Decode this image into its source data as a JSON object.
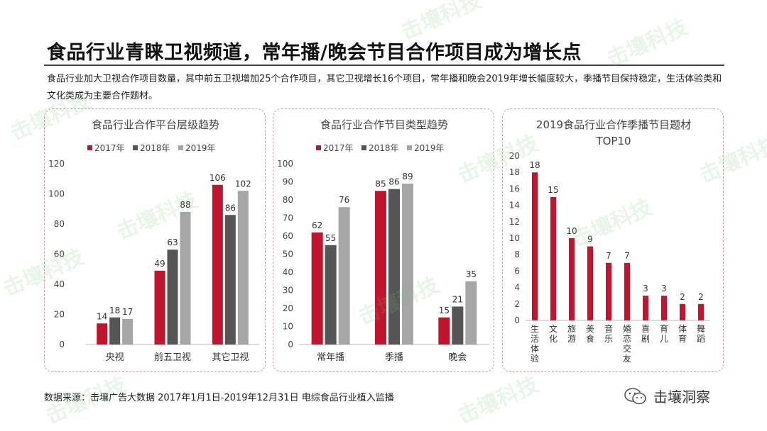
{
  "header": {
    "title": "食品行业青睐卫视频道，常年播/晚会节目合作项目成为增长点",
    "description": "食品行业加大卫视合作项目数量，其中前五卫视增加25个合作项目，其它卫视增长16个项目，常年播和晚会2019年增长幅度较大，季播节目保持稳定，生活体验类和文化类成为主要合作题材。"
  },
  "footer": {
    "source": "数据来源：击壤广告大数据 2017年1月1日-2019年12月31日 电综食品行业植入监播",
    "brand": "击壤洞察"
  },
  "watermark": "击壤科技",
  "colors": {
    "y2017": "#c0152f",
    "y2018": "#555555",
    "y2019": "#a6a6a6",
    "panel_border": "#c8a0a6"
  },
  "chart_data": [
    {
      "type": "bar",
      "title": "食品行业合作平台层级趋势",
      "categories": [
        "央视",
        "前五卫视",
        "其它卫视"
      ],
      "series": [
        {
          "name": "2017年",
          "values": [
            14,
            49,
            106
          ]
        },
        {
          "name": "2018年",
          "values": [
            18,
            63,
            86
          ]
        },
        {
          "name": "2019年",
          "values": [
            17,
            88,
            102
          ]
        }
      ],
      "ylim": [
        0,
        120
      ],
      "yticks": [
        0,
        20,
        40,
        60,
        80,
        100,
        120
      ],
      "legend": "top"
    },
    {
      "type": "bar",
      "title": "食品行业合作节目类型趋势",
      "categories": [
        "常年播",
        "季播",
        "晚会"
      ],
      "series": [
        {
          "name": "2017年",
          "values": [
            62,
            85,
            15
          ]
        },
        {
          "name": "2018年",
          "values": [
            55,
            86,
            21
          ]
        },
        {
          "name": "2019年",
          "values": [
            76,
            89,
            35
          ]
        }
      ],
      "ylim": [
        0,
        100
      ],
      "yticks": [
        0,
        10,
        20,
        30,
        40,
        50,
        60,
        70,
        80,
        90,
        100
      ],
      "legend": "top"
    },
    {
      "type": "bar",
      "title": "2019食品行业合作季播节目题材",
      "title_line2": "TOP10",
      "categories": [
        "生活体验",
        "文化",
        "旅游",
        "美食",
        "音乐",
        "婚恋交友",
        "喜剧",
        "育儿",
        "体育",
        "舞蹈"
      ],
      "values": [
        18,
        15,
        10,
        9,
        7,
        7,
        3,
        3,
        2,
        2
      ],
      "ylim": [
        0,
        20
      ],
      "yticks": [
        0,
        2,
        4,
        6,
        8,
        10,
        12,
        14,
        16,
        18,
        20
      ]
    }
  ]
}
